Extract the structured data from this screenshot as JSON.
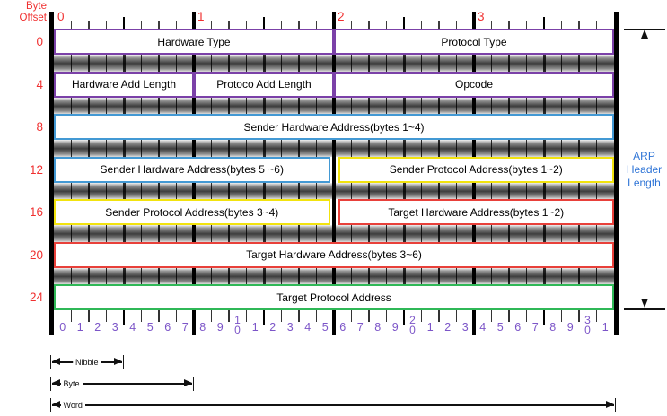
{
  "diagram": {
    "byte_offset_label": {
      "lines": [
        "Byte",
        "Offset"
      ]
    },
    "byte_ruler": [
      "0",
      "1",
      "2",
      "3"
    ],
    "rows": [
      {
        "offset": "0",
        "cells": [
          {
            "label": "Hardware Type",
            "color": "purple",
            "start": 0,
            "end": 16
          },
          {
            "label": "Protocol Type",
            "color": "purple",
            "start": 16,
            "end": 32
          }
        ]
      },
      {
        "offset": "4",
        "cells": [
          {
            "label": "Hardware Add Length",
            "color": "purple",
            "start": 0,
            "end": 8
          },
          {
            "label": "Protoco Add Length",
            "color": "purple",
            "start": 8,
            "end": 16
          },
          {
            "label": "Opcode",
            "color": "purple",
            "start": 16,
            "end": 32
          }
        ]
      },
      {
        "offset": "8",
        "cells": [
          {
            "label": "Sender Hardware Address(bytes 1~4)",
            "color": "blue",
            "start": 0,
            "end": 32
          }
        ]
      },
      {
        "offset": "12",
        "cells": [
          {
            "label": "Sender Hardware Address(bytes 5 ~6)",
            "color": "blue",
            "start": 0,
            "end": 16
          },
          {
            "label": "Sender Protocol Address(bytes 1~2)",
            "color": "yellow",
            "start": 16,
            "end": 32
          }
        ]
      },
      {
        "offset": "16",
        "cells": [
          {
            "label": "Sender Protocol Address(bytes 3~4)",
            "color": "yellow",
            "start": 0,
            "end": 16
          },
          {
            "label": "Target Hardware Address(bytes 1~2)",
            "color": "red",
            "start": 16,
            "end": 32
          }
        ]
      },
      {
        "offset": "20",
        "cells": [
          {
            "label": "Target Hardware Address(bytes 3~6)",
            "color": "red",
            "start": 0,
            "end": 32
          }
        ]
      },
      {
        "offset": "24",
        "cells": [
          {
            "label": "Target Protocol Address",
            "color": "green",
            "start": 0,
            "end": 32
          }
        ]
      }
    ],
    "bit_ruler": [
      "0",
      "1",
      "2",
      "3",
      "4",
      "5",
      "6",
      "7",
      "8",
      "9",
      "10",
      "1",
      "2",
      "3",
      "4",
      "5",
      "6",
      "7",
      "8",
      "9",
      "20",
      "1",
      "2",
      "3",
      "4",
      "5",
      "6",
      "7",
      "8",
      "9",
      "30",
      "1"
    ],
    "measures": [
      {
        "label": "Nibble",
        "bits": 4
      },
      {
        "label": "Byte",
        "bits": 8
      },
      {
        "label": "Word",
        "bits": 32
      }
    ],
    "right_bracket_label": {
      "text": "ARP Header Length",
      "lines": [
        "ARP",
        "Header",
        "Length"
      ]
    }
  },
  "colors": {
    "purple": "#7B41A8",
    "blue": "#4399D4",
    "yellow": "#F2E30E",
    "red": "#E8403A",
    "green": "#2FB857",
    "offset_red": "#F03030",
    "bit_purple": "#7C55C8",
    "arp_blue": "#2E74D6",
    "background": "#FFFFFF"
  }
}
